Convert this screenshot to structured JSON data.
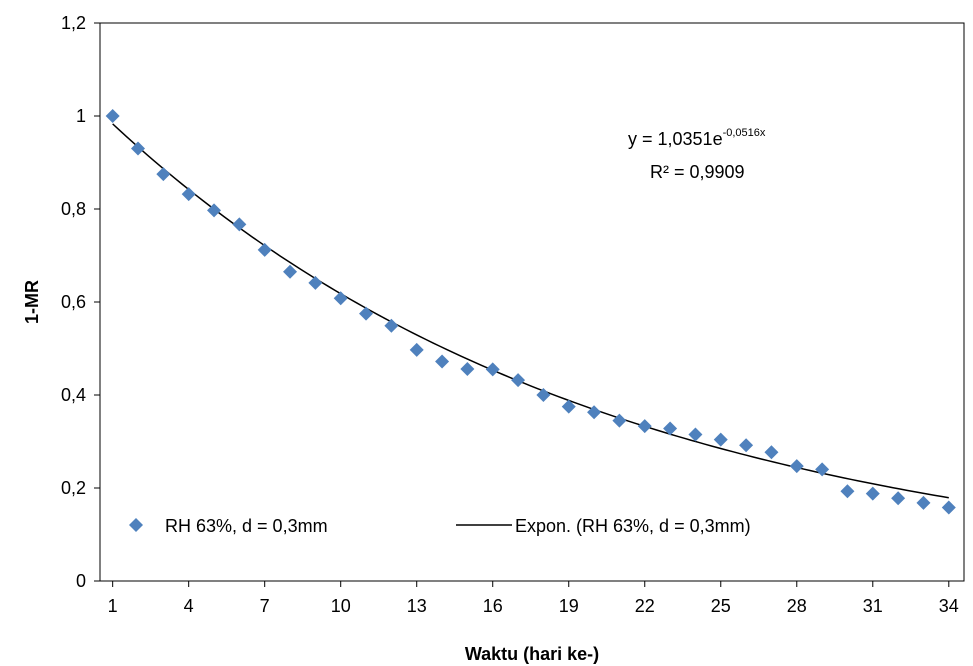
{
  "chart_data": {
    "type": "scatter",
    "title": "",
    "xlabel": "Waktu (hari ke-)",
    "ylabel": "1-MR",
    "xlim": [
      0.5,
      34.6
    ],
    "ylim": [
      0,
      1.2
    ],
    "x_ticks": [
      1,
      4,
      7,
      10,
      13,
      16,
      19,
      22,
      25,
      28,
      31,
      34
    ],
    "y_ticks": [
      0,
      0.2,
      0.4,
      0.6,
      0.8,
      1,
      1.2
    ],
    "y_tick_labels": [
      "0",
      "0,2",
      "0,4",
      "0,6",
      "0,8",
      "1",
      "1,2"
    ],
    "grid": false,
    "legend_position": "bottom",
    "series": [
      {
        "name": "RH 63%, d = 0,3mm",
        "marker": "diamond",
        "color": "#4F81BD",
        "x": [
          1,
          2,
          3,
          4,
          5,
          6,
          7,
          8,
          9,
          10,
          11,
          12,
          13,
          14,
          15,
          16,
          17,
          18,
          19,
          20,
          21,
          22,
          23,
          24,
          25,
          26,
          27,
          28,
          29,
          30,
          31,
          32,
          33,
          34
        ],
        "y": [
          1.0,
          0.93,
          0.875,
          0.832,
          0.797,
          0.767,
          0.712,
          0.665,
          0.641,
          0.608,
          0.575,
          0.549,
          0.497,
          0.472,
          0.456,
          0.455,
          0.432,
          0.4,
          0.375,
          0.363,
          0.345,
          0.333,
          0.328,
          0.315,
          0.304,
          0.292,
          0.277,
          0.247,
          0.24,
          0.193,
          0.188,
          0.178,
          0.168,
          0.158
        ]
      }
    ],
    "trendline": {
      "name": "Expon. (RH 63%, d = 0,3mm)",
      "color": "#000000",
      "a": 1.0351,
      "b": -0.0516,
      "equation_prefix": "y = 1,0351e",
      "equation_exponent": "-0,0516x",
      "r2_text": "R² = 0,9909"
    }
  }
}
